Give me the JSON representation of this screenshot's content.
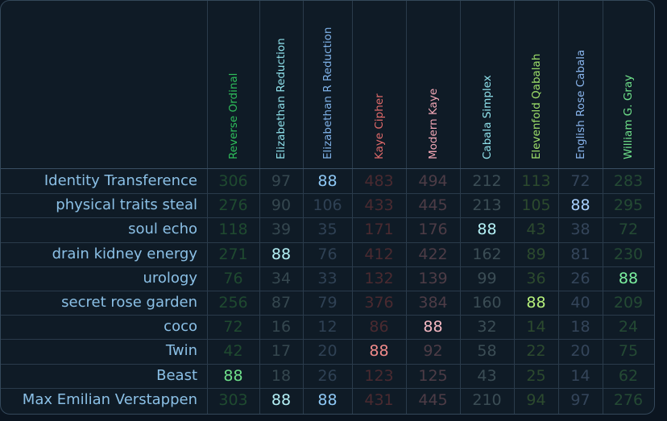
{
  "columns": [
    {
      "name": "Reverse Ordinal",
      "color": "#2ebd5a",
      "dim": "#1f4a30"
    },
    {
      "name": "Elizabethan Reduction",
      "color": "#8ee0ea",
      "dim": "#35474f"
    },
    {
      "name": "Elizabethan R Reduction",
      "color": "#7fb2e8",
      "dim": "#2f4154"
    },
    {
      "name": "Kaye Cipher",
      "color": "#e06a6a",
      "dim": "#4a2a30"
    },
    {
      "name": "Modern Kaye",
      "color": "#f0a6b4",
      "dim": "#4d3c46"
    },
    {
      "name": "Cabala Simplex",
      "color": "#8ee0ea",
      "dim": "#3b4d55"
    },
    {
      "name": "Elevenfold Qabalah",
      "color": "#9ee06a",
      "dim": "#2c4a2e"
    },
    {
      "name": "English Rose Cabala",
      "color": "#8ab6ee",
      "dim": "#34455a"
    },
    {
      "name": "William G. Gray",
      "color": "#6ee08a",
      "dim": "#244a34"
    }
  ],
  "highlight_color_by_col": [
    "#6ee08a",
    "#b4f0f5",
    "#8ec8f5",
    "#f08a8a",
    "#f5b8c2",
    "#b4f0f5",
    "#b4ee7a",
    "#a8d0ff",
    "#7cf2a0"
  ],
  "rows": [
    {
      "label": "Identity Transference",
      "values": [
        "306",
        "97",
        "88",
        "483",
        "494",
        "212",
        "113",
        "72",
        "283"
      ]
    },
    {
      "label": "physical traits steal",
      "values": [
        "276",
        "90",
        "106",
        "433",
        "445",
        "213",
        "105",
        "88",
        "295"
      ]
    },
    {
      "label": "soul echo",
      "values": [
        "118",
        "39",
        "35",
        "171",
        "176",
        "88",
        "43",
        "38",
        "72"
      ]
    },
    {
      "label": "drain kidney energy",
      "values": [
        "271",
        "88",
        "76",
        "412",
        "422",
        "162",
        "89",
        "81",
        "230"
      ]
    },
    {
      "label": "urology",
      "values": [
        "76",
        "34",
        "33",
        "132",
        "139",
        "99",
        "36",
        "26",
        "88"
      ]
    },
    {
      "label": "secret rose garden",
      "values": [
        "256",
        "87",
        "79",
        "376",
        "384",
        "160",
        "88",
        "40",
        "209"
      ]
    },
    {
      "label": "coco",
      "values": [
        "72",
        "16",
        "12",
        "86",
        "88",
        "32",
        "14",
        "18",
        "24"
      ]
    },
    {
      "label": "Twin",
      "values": [
        "42",
        "17",
        "20",
        "88",
        "92",
        "58",
        "22",
        "20",
        "75"
      ]
    },
    {
      "label": "Beast",
      "values": [
        "88",
        "18",
        "26",
        "123",
        "125",
        "43",
        "25",
        "14",
        "62"
      ]
    },
    {
      "label": "Max Emilian Verstappen",
      "values": [
        "303",
        "88",
        "88",
        "431",
        "445",
        "210",
        "94",
        "97",
        "276"
      ]
    }
  ],
  "highlight_value": "88"
}
